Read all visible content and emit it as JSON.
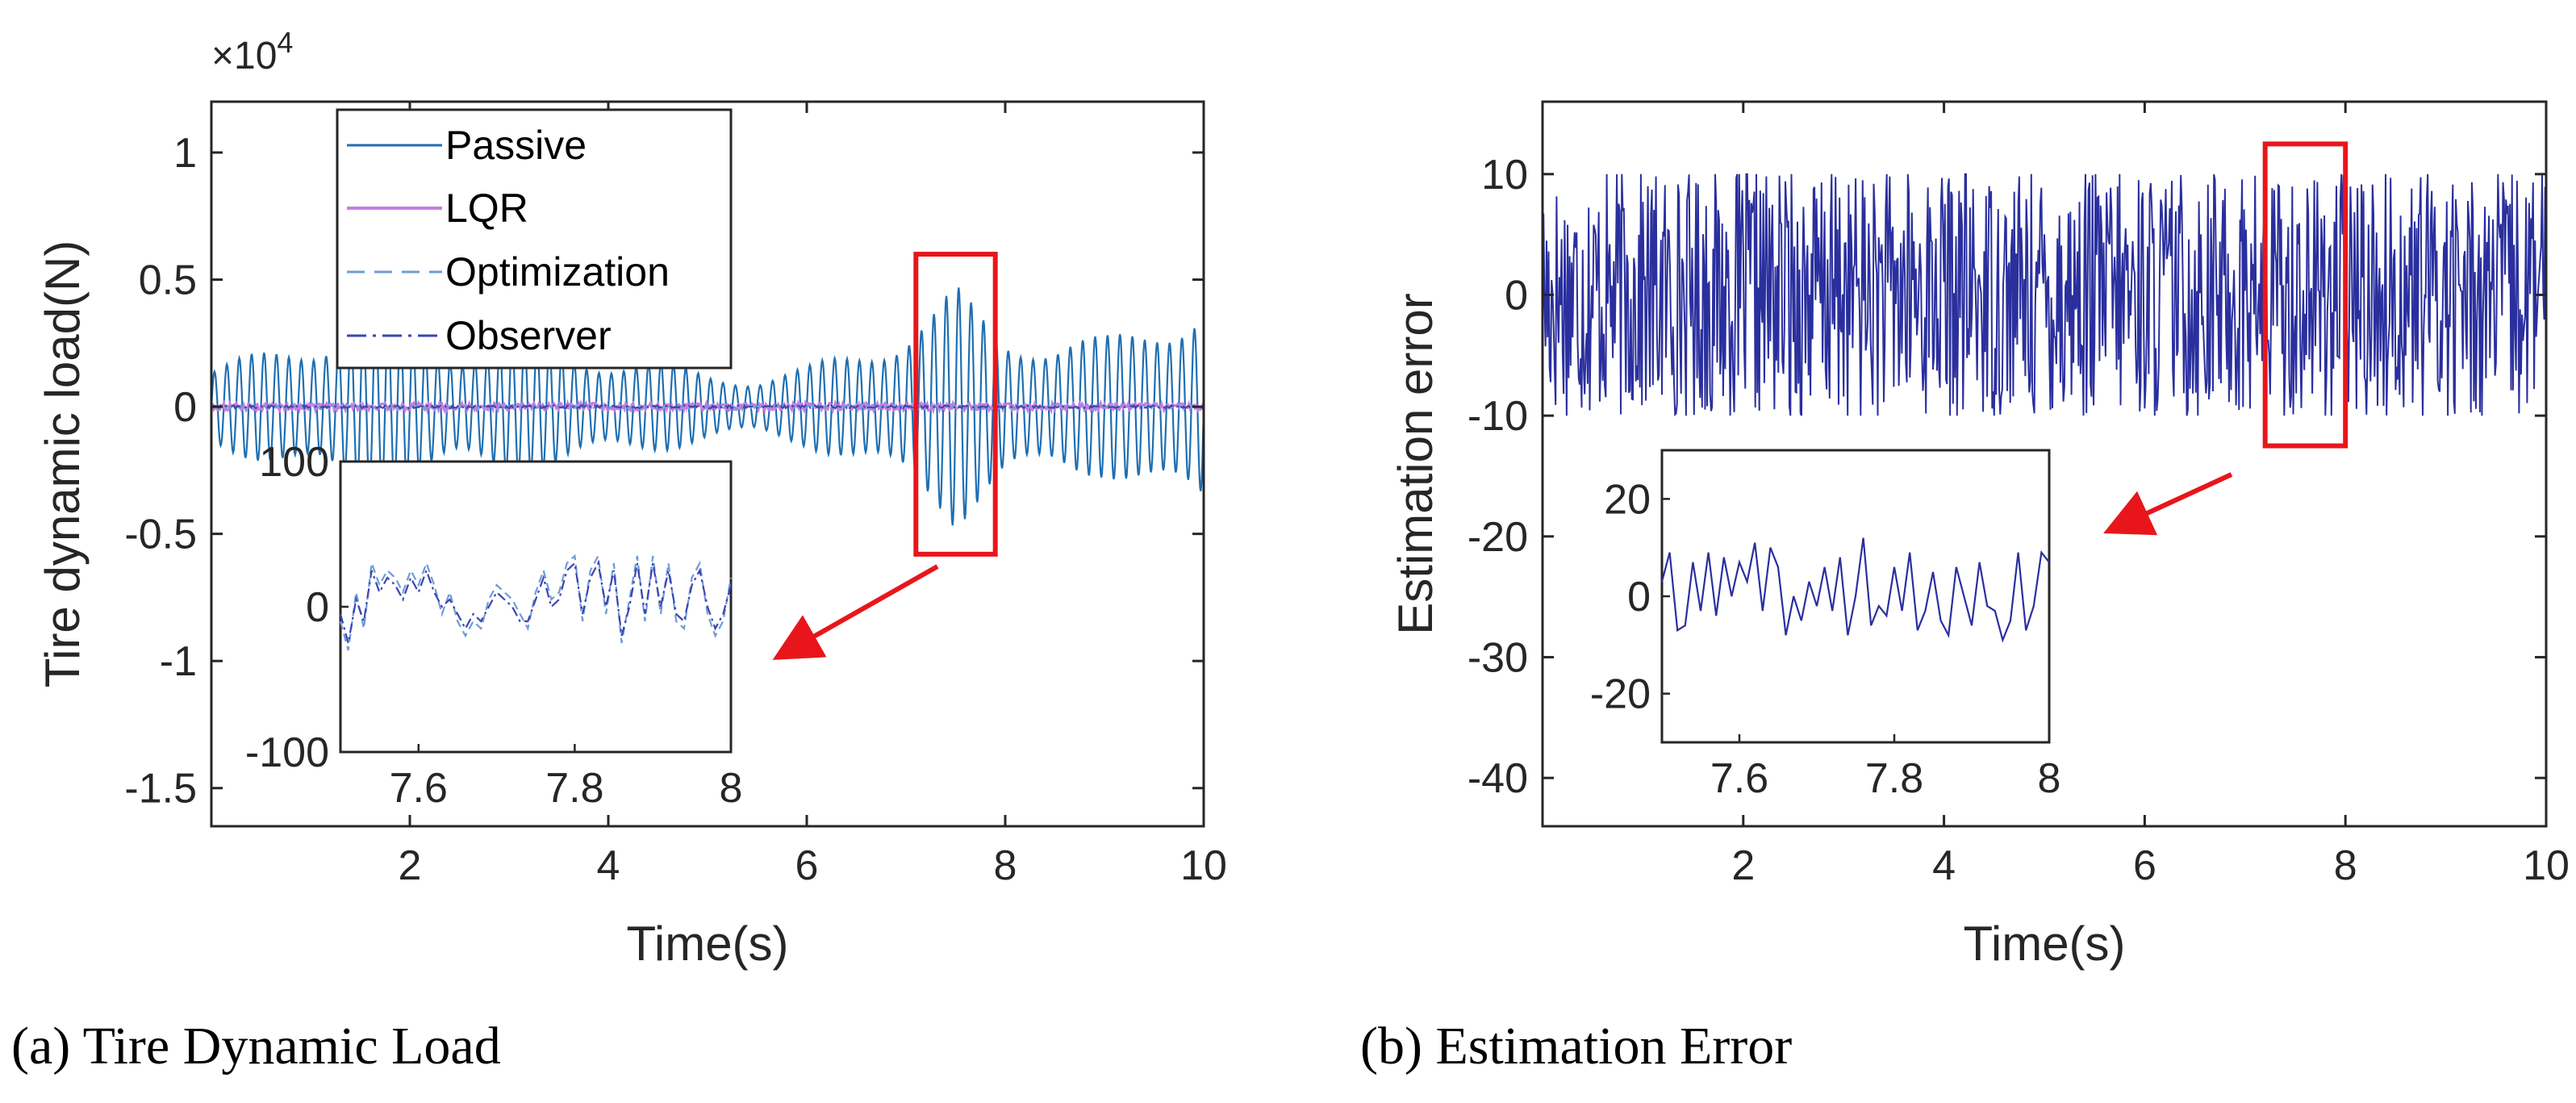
{
  "colors": {
    "passive": "#1f6fb2",
    "lqr": "#c77de0",
    "optimization": "#6f9bd8",
    "observer": "#3a45b0",
    "error": "#2a2f9e",
    "highlight": "#e8161b"
  },
  "chart_data": [
    {
      "type": "line",
      "panel_label": "(a)",
      "caption": "Tire Dynamic Load",
      "xlabel": "Time(s)",
      "ylabel": "Tire dynamic load(N)",
      "y_multiplier": "×10",
      "y_multiplier_exp": "4",
      "xlim": [
        0,
        10
      ],
      "ylim": [
        -1.65,
        1.2
      ],
      "x_ticks": [
        2,
        4,
        6,
        8,
        10
      ],
      "x_tick_labels": [
        "2",
        "4",
        "6",
        "8",
        "10"
      ],
      "y_ticks": [
        1,
        0.5,
        0,
        -0.5,
        -1,
        -1.5
      ],
      "y_tick_labels": [
        "1",
        "0.5",
        "0",
        "-0.5",
        "-1",
        "-1.5"
      ],
      "legend": [
        "Passive",
        "LQR",
        "Optimization",
        "Observer"
      ],
      "legend_location": "upper-left",
      "series": [
        {
          "name": "Passive",
          "style": "solid",
          "envelope_pts": [
            [
              0,
              0.16
            ],
            [
              0.5,
              0.22
            ],
            [
              1,
              0.28
            ],
            [
              1.5,
              0.36
            ],
            [
              2,
              0.3
            ],
            [
              2.5,
              0.25
            ],
            [
              3,
              0.28
            ],
            [
              3.5,
              0.24
            ],
            [
              4,
              0.2
            ],
            [
              4.5,
              0.18
            ],
            [
              5,
              0.14
            ],
            [
              5.5,
              0.12
            ],
            [
              6,
              0.16
            ],
            [
              6.5,
              0.24
            ],
            [
              7,
              0.32
            ],
            [
              7.3,
              0.4
            ],
            [
              7.5,
              0.48
            ],
            [
              7.8,
              0.38
            ],
            [
              8,
              0.32
            ],
            [
              8.5,
              0.26
            ],
            [
              9,
              0.28
            ],
            [
              9.5,
              0.38
            ],
            [
              10,
              0.42
            ]
          ],
          "frequency_hz": 8,
          "unit_scale": "×10^4 N"
        },
        {
          "name": "LQR",
          "style": "solid",
          "amplitude": 0.015
        },
        {
          "name": "Optimization",
          "style": "dashed",
          "amplitude": 0.006
        },
        {
          "name": "Observer",
          "style": "dashdot",
          "amplitude": 0.006
        }
      ],
      "highlight_box": {
        "x_range": [
          7.1,
          7.9
        ],
        "y_range": [
          -0.58,
          0.6
        ]
      },
      "inset": {
        "xlim": [
          7.5,
          8
        ],
        "ylim": [
          -100,
          100
        ],
        "x_ticks": [
          7.6,
          7.8,
          8
        ],
        "x_tick_labels": [
          "7.6",
          "7.8",
          "8"
        ],
        "y_ticks": [
          100,
          0,
          -100
        ],
        "y_tick_labels": [
          "100",
          "0",
          "-100"
        ],
        "step": 0.01,
        "optimization": [
          -10,
          -30,
          10,
          -15,
          30,
          15,
          25,
          20,
          10,
          25,
          15,
          30,
          15,
          -5,
          10,
          -10,
          -20,
          -10,
          -15,
          5,
          15,
          10,
          5,
          -5,
          -15,
          10,
          25,
          5,
          10,
          30,
          35,
          -10,
          25,
          35,
          -5,
          30,
          -25,
          5,
          35,
          -10,
          35,
          -5,
          30,
          -10,
          -15,
          20,
          30,
          -5,
          -20,
          -10,
          20
        ],
        "observer": [
          -5,
          -25,
          5,
          -10,
          25,
          10,
          20,
          15,
          5,
          20,
          10,
          25,
          10,
          0,
          5,
          -5,
          -15,
          -5,
          -10,
          0,
          10,
          5,
          0,
          -10,
          -10,
          5,
          20,
          0,
          5,
          25,
          30,
          -5,
          20,
          30,
          0,
          25,
          -20,
          0,
          30,
          -5,
          30,
          0,
          25,
          -5,
          -10,
          15,
          25,
          0,
          -15,
          -5,
          15
        ]
      }
    },
    {
      "type": "line",
      "panel_label": "(b)",
      "caption": "Estimation Error",
      "xlabel": "Time(s)",
      "ylabel": "Estimation error",
      "xlim": [
        0,
        10
      ],
      "ylim": [
        -44,
        16
      ],
      "x_ticks": [
        2,
        4,
        6,
        8,
        10
      ],
      "x_tick_labels": [
        "2",
        "4",
        "6",
        "8",
        "10"
      ],
      "y_ticks": [
        10,
        0,
        -10,
        -20,
        -30,
        -40
      ],
      "y_tick_labels": [
        "10",
        "0",
        "-10",
        "-20",
        "-30",
        "-40"
      ],
      "series": [
        {
          "name": "Estimation error",
          "style": "solid",
          "amplitude": 10,
          "pseudo_random_seed": 17
        }
      ],
      "highlight_box": {
        "x_range": [
          7.2,
          8
        ],
        "y_range": [
          -12.5,
          12.5
        ]
      },
      "inset": {
        "xlim": [
          7.5,
          8
        ],
        "ylim": [
          -30,
          30
        ],
        "x_ticks": [
          7.6,
          7.8,
          8
        ],
        "x_tick_labels": [
          "7.6",
          "7.8",
          "8"
        ],
        "y_ticks": [
          20,
          0,
          -20
        ],
        "y_tick_labels": [
          "20",
          "0",
          "-20"
        ],
        "step": 0.01,
        "values": [
          3,
          9,
          -7,
          -6,
          7,
          -3,
          9,
          -4,
          8,
          0,
          7,
          3,
          11,
          -3,
          10,
          6,
          -8,
          0,
          -5,
          3,
          -2,
          6,
          -3,
          8,
          -8,
          0,
          12,
          -6,
          -2,
          -4,
          6,
          -3,
          9,
          -7,
          -3,
          5,
          -5,
          -8,
          6,
          0,
          -6,
          7,
          -2,
          -3,
          -9,
          -5,
          9,
          -7,
          -2,
          9,
          7
        ]
      }
    }
  ]
}
